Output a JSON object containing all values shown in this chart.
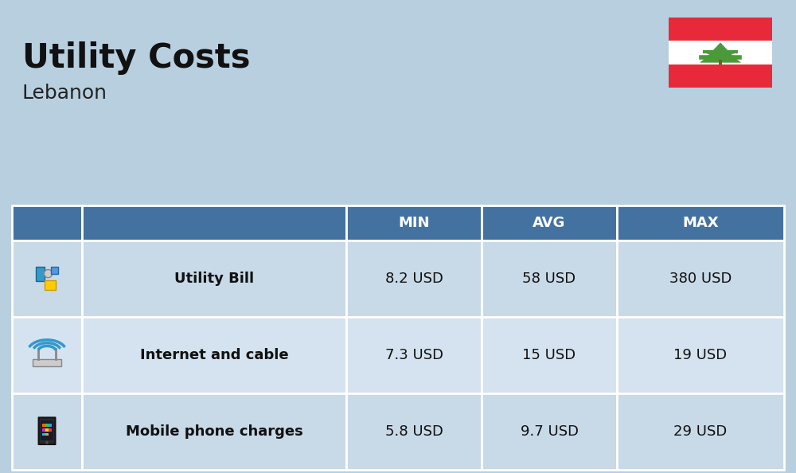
{
  "title": "Utility Costs",
  "subtitle": "Lebanon",
  "background_color": "#b8cfe0",
  "header_color": "#4472a0",
  "header_text_color": "#ffffff",
  "row_color_odd": "#c8d9e8",
  "row_color_even": "#d4e3ef",
  "table_line_color": "#ffffff",
  "col_headers": [
    "",
    "",
    "MIN",
    "AVG",
    "MAX"
  ],
  "rows": [
    {
      "label": "Utility Bill",
      "min": "8.2 USD",
      "avg": "58 USD",
      "max": "380 USD"
    },
    {
      "label": "Internet and cable",
      "min": "7.3 USD",
      "avg": "15 USD",
      "max": "19 USD"
    },
    {
      "label": "Mobile phone charges",
      "min": "5.8 USD",
      "avg": "9.7 USD",
      "max": "29 USD"
    }
  ],
  "title_fontsize": 30,
  "subtitle_fontsize": 18,
  "header_fontsize": 13,
  "cell_fontsize": 13,
  "label_fontsize": 13,
  "flag_red": "#e8293a",
  "flag_white": "#ffffff",
  "tree_green": "#4a9a3a",
  "tree_trunk": "#7a5c2a"
}
